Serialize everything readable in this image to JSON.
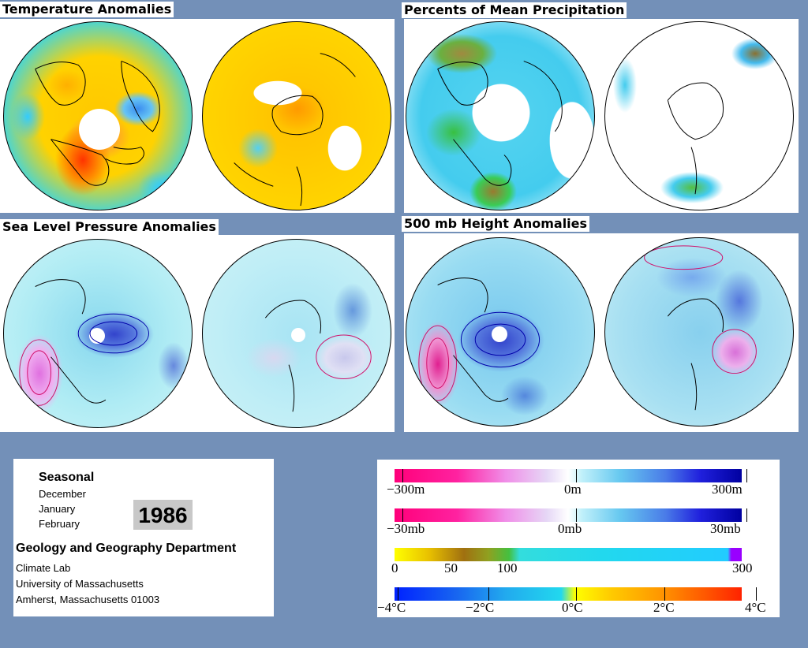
{
  "panels": {
    "temperature": {
      "title": "Temperature Anomalies"
    },
    "precipitation": {
      "title": "Percents of Mean Precipitation"
    },
    "slp": {
      "title": "Sea Level Pressure Anomalies"
    },
    "height500": {
      "title": "500 mb Height Anomalies"
    }
  },
  "info": {
    "heading": "Seasonal",
    "months": [
      "December",
      "January",
      "February"
    ],
    "year": "1986",
    "department": "Geology and Geography Department",
    "lines": [
      "Climate Lab",
      "University of Massachusetts",
      "Amherst, Massachusetts 01003"
    ]
  },
  "legend": {
    "height_bar": {
      "left": "−300m",
      "mid": "0m",
      "right": "300m"
    },
    "slp_bar": {
      "left": "−30mb",
      "mid": "0mb",
      "right": "30mb"
    },
    "precip_bar": {
      "v0": "0",
      "v50": "50",
      "v100": "100",
      "v300": "300"
    },
    "temp_bar": {
      "m4": "−4°C",
      "m2": "−2°C",
      "z": "0°C",
      "p2": "2°C",
      "p4": "4°C"
    }
  },
  "colors": {
    "background": "#7390b8",
    "anomaly_negative": "#ff0088",
    "anomaly_positive": "#0000cc",
    "precip_dry": "#8a6a10",
    "precip_wet": "#9900ff",
    "temp_cold": "#0033ff",
    "temp_warm": "#ff2a00"
  }
}
